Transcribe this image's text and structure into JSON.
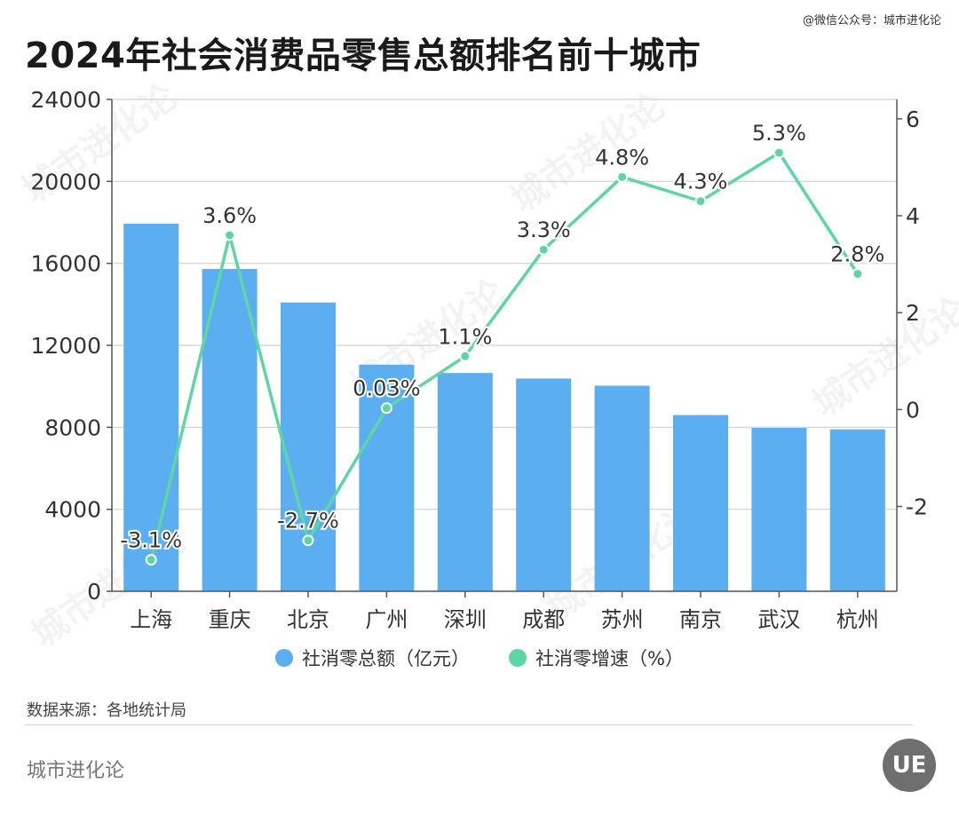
{
  "header": {
    "watermark_text": "@微信公众号：城市进化论",
    "title": "2024年社会消费品零售总额排名前十城市"
  },
  "legend": {
    "bar_label": "社消零总额（亿元）",
    "line_label": "社消零增速（%）"
  },
  "footer": {
    "source": "数据来源：各地统计局",
    "brand": "城市进化论",
    "logo_text": "UE"
  },
  "colors": {
    "bar": "#5BAEF0",
    "line": "#5ED6A4",
    "grid": "#d9d9d9",
    "axis": "#555555"
  },
  "chart_data": {
    "type": "bar",
    "title": "2024年社会消费品零售总额排名前十城市",
    "categories": [
      "上海",
      "重庆",
      "北京",
      "广州",
      "深圳",
      "成都",
      "苏州",
      "南京",
      "武汉",
      "杭州"
    ],
    "series": [
      {
        "name": "社消零总额（亿元）",
        "type": "bar",
        "axis": "left",
        "values": [
          17940,
          15730,
          14090,
          11060,
          10650,
          10380,
          10030,
          8600,
          7970,
          7900
        ]
      },
      {
        "name": "社消零增速（%）",
        "type": "line",
        "axis": "right",
        "values": [
          -3.1,
          3.6,
          -2.7,
          0.03,
          1.1,
          3.3,
          4.8,
          4.3,
          5.3,
          2.8
        ],
        "labels": [
          "-3.1%",
          "3.6%",
          "-2.7%",
          "0.03%",
          "1.1%",
          "3.3%",
          "4.8%",
          "4.3%",
          "5.3%",
          "2.8%"
        ]
      }
    ],
    "ylim_left": [
      0,
      24000
    ],
    "yticks_left": [
      "0",
      "4000",
      "8000",
      "12000",
      "16000",
      "20000",
      "24000"
    ],
    "ylim_right": [
      -3.75,
      6.4
    ],
    "yticks_right": [
      "-2",
      "0",
      "2",
      "4",
      "6"
    ],
    "grid": true,
    "legend_position": "bottom"
  }
}
